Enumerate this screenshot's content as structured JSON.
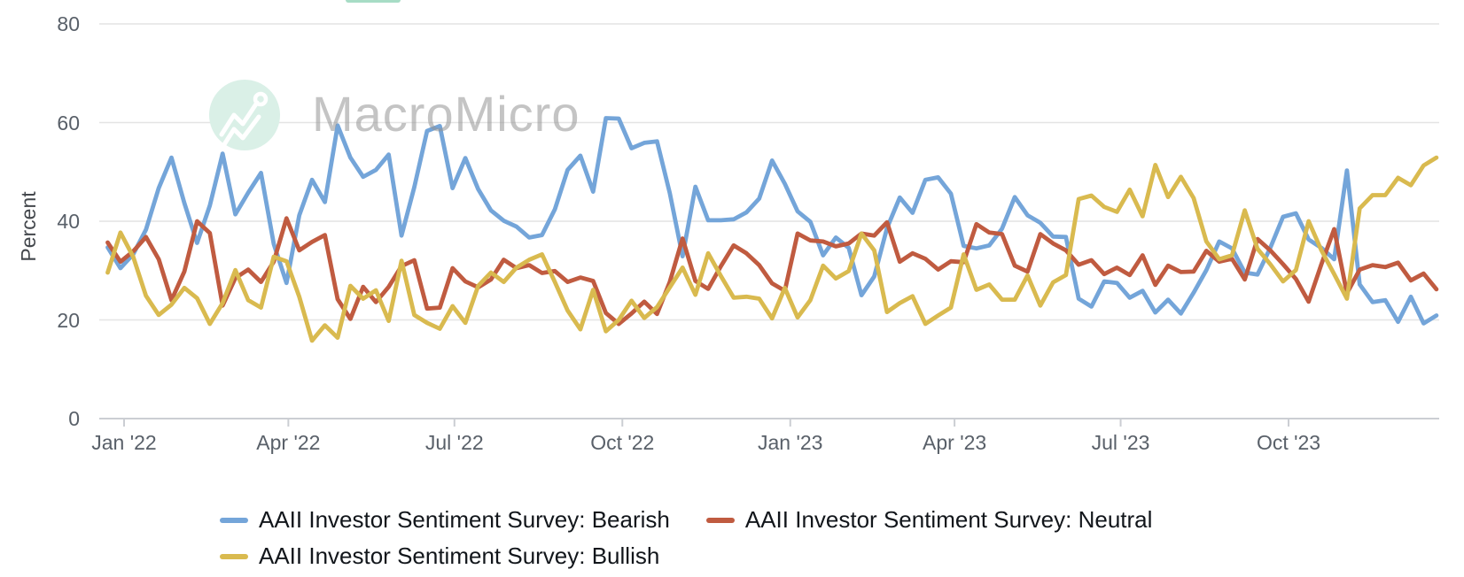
{
  "watermark": {
    "brand": "MacroMicro"
  },
  "top_fragment": {
    "color": "#a7dcc5"
  },
  "axis_colors": {
    "grid": "#e4e4e4",
    "axis": "#cbced3",
    "tick_text": "#596069"
  },
  "chart_data": {
    "type": "line",
    "title": "",
    "xlabel": "",
    "ylabel": "Percent",
    "ylim": [
      0,
      85
    ],
    "y_ticks": [
      0,
      20,
      40,
      60,
      80
    ],
    "grid": "horizontal",
    "legend_position": "bottom-left",
    "x_ticks": [
      {
        "label": "Jan '22",
        "date": "2022-01-01"
      },
      {
        "label": "Apr '22",
        "date": "2022-04-01"
      },
      {
        "label": "Jul '22",
        "date": "2022-07-01"
      },
      {
        "label": "Oct '22",
        "date": "2022-10-01"
      },
      {
        "label": "Jan '23",
        "date": "2023-01-01"
      },
      {
        "label": "Apr '23",
        "date": "2023-04-01"
      },
      {
        "label": "Jul '23",
        "date": "2023-07-01"
      },
      {
        "label": "Oct '23",
        "date": "2023-10-01"
      }
    ],
    "dates": [
      "2021-12-23",
      "2021-12-30",
      "2022-01-06",
      "2022-01-13",
      "2022-01-20",
      "2022-01-27",
      "2022-02-03",
      "2022-02-10",
      "2022-02-17",
      "2022-02-24",
      "2022-03-03",
      "2022-03-10",
      "2022-03-17",
      "2022-03-24",
      "2022-03-31",
      "2022-04-07",
      "2022-04-14",
      "2022-04-21",
      "2022-04-28",
      "2022-05-05",
      "2022-05-12",
      "2022-05-19",
      "2022-05-26",
      "2022-06-02",
      "2022-06-09",
      "2022-06-16",
      "2022-06-23",
      "2022-06-30",
      "2022-07-07",
      "2022-07-14",
      "2022-07-21",
      "2022-07-28",
      "2022-08-04",
      "2022-08-11",
      "2022-08-18",
      "2022-08-25",
      "2022-09-01",
      "2022-09-08",
      "2022-09-15",
      "2022-09-22",
      "2022-09-29",
      "2022-10-06",
      "2022-10-13",
      "2022-10-20",
      "2022-10-27",
      "2022-11-03",
      "2022-11-10",
      "2022-11-17",
      "2022-11-24",
      "2022-12-01",
      "2022-12-08",
      "2022-12-15",
      "2022-12-22",
      "2022-12-29",
      "2023-01-05",
      "2023-01-12",
      "2023-01-19",
      "2023-01-26",
      "2023-02-02",
      "2023-02-09",
      "2023-02-16",
      "2023-02-23",
      "2023-03-02",
      "2023-03-09",
      "2023-03-16",
      "2023-03-23",
      "2023-03-30",
      "2023-04-06",
      "2023-04-13",
      "2023-04-20",
      "2023-04-27",
      "2023-05-04",
      "2023-05-11",
      "2023-05-18",
      "2023-05-25",
      "2023-06-01",
      "2023-06-08",
      "2023-06-15",
      "2023-06-22",
      "2023-06-29",
      "2023-07-06",
      "2023-07-13",
      "2023-07-20",
      "2023-07-27",
      "2023-08-03",
      "2023-08-10",
      "2023-08-17",
      "2023-08-24",
      "2023-08-31",
      "2023-09-07",
      "2023-09-14",
      "2023-09-21",
      "2023-09-28",
      "2023-10-05",
      "2023-10-12",
      "2023-10-19",
      "2023-10-26",
      "2023-11-02",
      "2023-11-09",
      "2023-11-16",
      "2023-11-23",
      "2023-11-30",
      "2023-12-07",
      "2023-12-14",
      "2023-12-21"
    ],
    "series": [
      {
        "name": "AAII Investor Sentiment Survey: Bearish",
        "color": "#74a5d9",
        "values": [
          34.7,
          30.5,
          33.3,
          38.3,
          46.7,
          52.9,
          43.7,
          35.6,
          43.2,
          53.7,
          41.4,
          45.8,
          49.8,
          35.4,
          27.5,
          41.2,
          48.4,
          43.9,
          59.4,
          52.9,
          49.0,
          50.4,
          53.5,
          37.1,
          46.9,
          58.3,
          59.3,
          46.7,
          52.8,
          46.5,
          42.2,
          40.1,
          38.9,
          36.7,
          37.2,
          42.4,
          50.4,
          53.3,
          46.0,
          60.9,
          60.8,
          54.8,
          55.9,
          56.2,
          45.7,
          32.9,
          47.0,
          40.2,
          40.2,
          40.4,
          41.8,
          44.6,
          52.3,
          47.6,
          42.0,
          39.9,
          33.1,
          36.7,
          34.6,
          25.0,
          28.8,
          38.6,
          44.8,
          41.7,
          48.4,
          48.9,
          45.6,
          35.0,
          34.5,
          35.1,
          38.5,
          44.9,
          41.2,
          39.7,
          36.9,
          36.8,
          24.3,
          22.7,
          27.8,
          27.5,
          24.5,
          25.9,
          21.5,
          24.1,
          21.3,
          25.5,
          30.1,
          35.9,
          34.5,
          29.6,
          29.2,
          34.6,
          40.9,
          41.6,
          36.3,
          34.6,
          32.3,
          50.3,
          27.2,
          23.6,
          24.0,
          19.6,
          24.7,
          19.3,
          20.9
        ]
      },
      {
        "name": "AAII Investor Sentiment Survey: Neutral",
        "color": "#c05b40",
        "values": [
          35.7,
          31.8,
          33.9,
          36.8,
          32.3,
          24.0,
          29.8,
          40.0,
          37.6,
          22.9,
          28.5,
          30.2,
          27.7,
          31.8,
          40.6,
          34.1,
          35.8,
          37.2,
          24.2,
          20.2,
          26.7,
          23.6,
          26.7,
          30.9,
          32.1,
          22.3,
          22.5,
          30.5,
          27.8,
          26.6,
          28.2,
          32.2,
          30.5,
          31.1,
          29.5,
          29.9,
          27.7,
          28.6,
          27.9,
          21.4,
          19.2,
          21.3,
          23.7,
          21.2,
          27.7,
          36.5,
          27.9,
          26.3,
          30.9,
          35.1,
          33.5,
          31.1,
          27.4,
          25.9,
          37.5,
          36.1,
          35.9,
          34.9,
          35.5,
          37.5,
          37.1,
          39.8,
          31.8,
          33.5,
          32.4,
          30.2,
          31.9,
          31.7,
          39.4,
          37.7,
          37.4,
          31.0,
          29.8,
          37.4,
          35.5,
          34.1,
          31.2,
          32.1,
          29.3,
          30.6,
          29.1,
          33.1,
          27.1,
          31.0,
          29.7,
          29.8,
          34.0,
          31.8,
          32.4,
          28.2,
          36.4,
          34.1,
          31.3,
          28.3,
          23.7,
          31.3,
          38.4,
          25.4,
          30.2,
          31.1,
          30.7,
          31.6,
          28.0,
          29.4,
          26.2
        ]
      },
      {
        "name": "AAII Investor Sentiment Survey: Bullish",
        "color": "#d9ba4f",
        "values": [
          29.6,
          37.7,
          32.8,
          24.9,
          21.0,
          23.1,
          26.5,
          24.4,
          19.2,
          23.4,
          30.1,
          24.0,
          22.5,
          32.8,
          31.9,
          24.7,
          15.8,
          18.9,
          16.4,
          26.9,
          24.3,
          26.0,
          19.8,
          32.0,
          21.0,
          19.4,
          18.2,
          22.8,
          19.4,
          26.9,
          29.6,
          27.7,
          30.6,
          32.2,
          33.3,
          27.7,
          21.9,
          18.1,
          26.1,
          17.7,
          20.0,
          23.9,
          20.4,
          22.6,
          26.6,
          30.6,
          25.1,
          33.5,
          28.9,
          24.5,
          24.7,
          24.3,
          20.3,
          26.5,
          20.5,
          24.0,
          31.0,
          28.4,
          29.9,
          37.5,
          34.1,
          21.6,
          23.4,
          24.8,
          19.2,
          20.9,
          22.5,
          33.3,
          26.1,
          27.2,
          24.1,
          24.1,
          29.0,
          22.9,
          27.6,
          29.1,
          44.5,
          45.2,
          42.9,
          41.9,
          46.4,
          41.0,
          51.4,
          44.9,
          49.0,
          44.7,
          35.9,
          32.3,
          33.1,
          42.2,
          34.4,
          31.3,
          27.8,
          30.1,
          40.0,
          34.1,
          29.3,
          24.3,
          42.6,
          45.3,
          45.3,
          48.8,
          47.3,
          51.3,
          52.9
        ]
      }
    ]
  }
}
